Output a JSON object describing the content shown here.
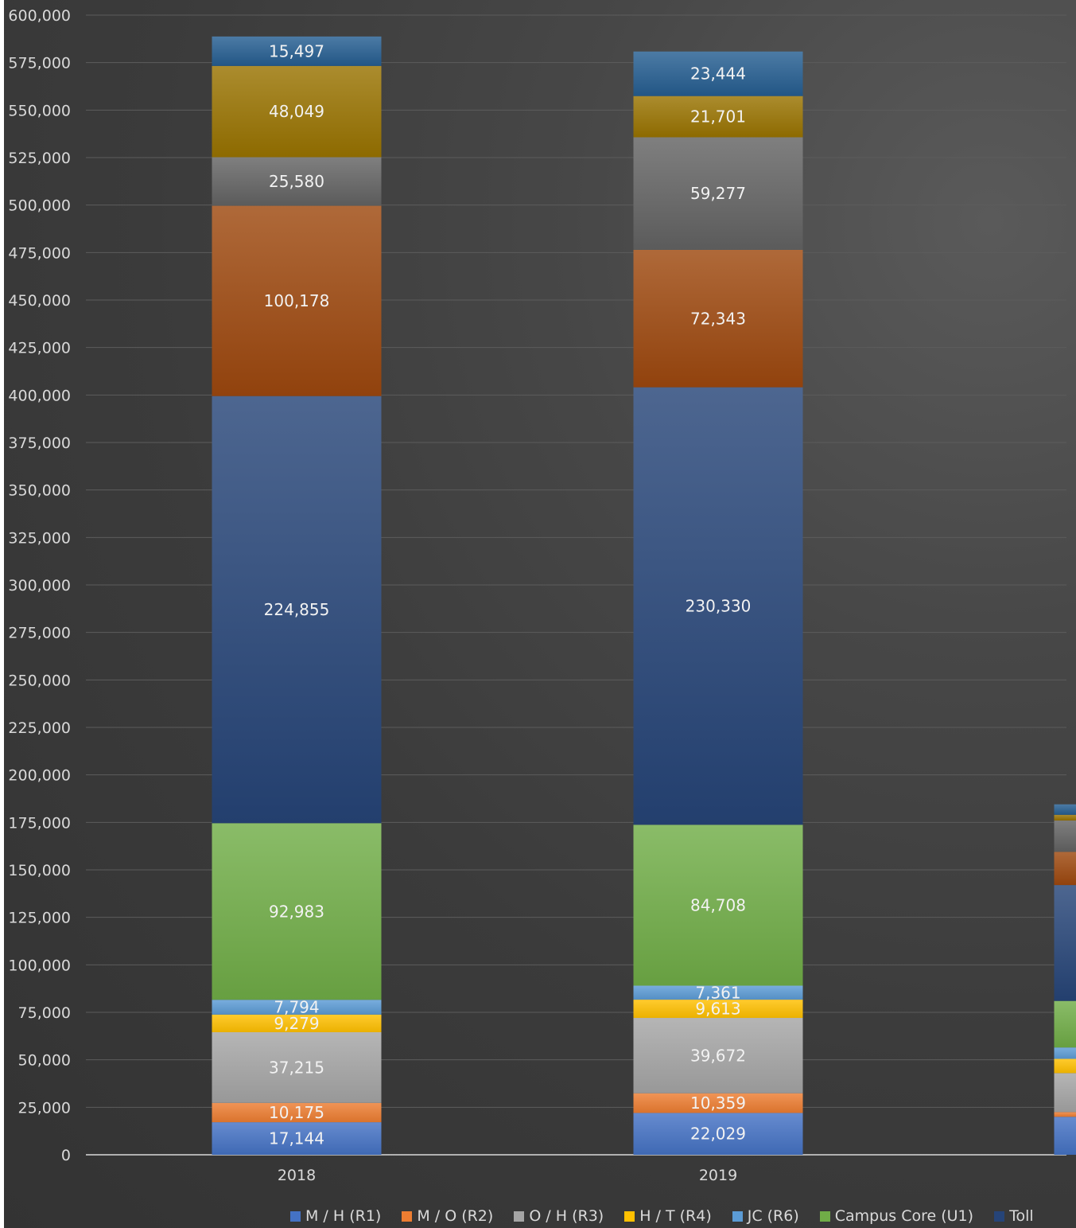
{
  "chart_data": {
    "type": "bar",
    "stacked": true,
    "categories": [
      "2018",
      "2019",
      ""
    ],
    "ylim": [
      0,
      600000
    ],
    "ytick_step": 25000,
    "yticks": [
      "0",
      "25,000",
      "50,000",
      "75,000",
      "100,000",
      "125,000",
      "150,000",
      "175,000",
      "200,000",
      "225,000",
      "250,000",
      "275,000",
      "300,000",
      "325,000",
      "350,000",
      "375,000",
      "400,000",
      "425,000",
      "450,000",
      "475,000",
      "500,000",
      "525,000",
      "550,000",
      "575,000",
      "600,000"
    ],
    "grid": true,
    "legend_position": "bottom",
    "series": [
      {
        "name": "M / H (R1)",
        "color": "#4472c4",
        "values": [
          17144,
          22029,
          20000
        ],
        "labels": [
          "17,144",
          "22,029",
          ""
        ]
      },
      {
        "name": "M / O (R2)",
        "color": "#ed7d31",
        "values": [
          10175,
          10359,
          2500
        ],
        "labels": [
          "10,175",
          "10,359",
          ""
        ]
      },
      {
        "name": "O / H (R3)",
        "color": "#a5a5a5",
        "values": [
          37215,
          39672,
          20500
        ],
        "labels": [
          "37,215",
          "39,672",
          ""
        ]
      },
      {
        "name": "H / T (R4)",
        "color": "#ffc000",
        "values": [
          9279,
          9613,
          7500
        ],
        "labels": [
          "9,279",
          "9,613",
          ""
        ]
      },
      {
        "name": "JC (R6)",
        "color": "#5b9bd5",
        "values": [
          7794,
          7361,
          6000
        ],
        "labels": [
          "7,794",
          "7,361",
          ""
        ]
      },
      {
        "name": "Campus Core (U1)",
        "color": "#70ad47",
        "values": [
          92983,
          84708,
          24500
        ],
        "labels": [
          "92,983",
          "84,708",
          ""
        ]
      },
      {
        "name": "Toll",
        "color": "#264478",
        "values": [
          224855,
          230330,
          61000
        ],
        "labels": [
          "224,855",
          "230,330",
          ""
        ]
      },
      {
        "name": "",
        "color": "#9e480e",
        "values": [
          100178,
          72343,
          17500
        ],
        "labels": [
          "100,178",
          "72,343",
          ""
        ]
      },
      {
        "name": "",
        "color": "#636363",
        "values": [
          25580,
          59277,
          16500
        ],
        "labels": [
          "25,580",
          "59,277",
          ""
        ]
      },
      {
        "name": "",
        "color": "#997300",
        "values": [
          48049,
          21701,
          3000
        ],
        "labels": [
          "48,049",
          "21,701",
          ""
        ]
      },
      {
        "name": "",
        "color": "#255e91",
        "values": [
          15497,
          23444,
          5500
        ],
        "labels": [
          "15,497",
          "23,444",
          ""
        ]
      }
    ]
  },
  "legend": [
    {
      "label": "M / H (R1)",
      "color": "#4472c4"
    },
    {
      "label": "M / O (R2)",
      "color": "#ed7d31"
    },
    {
      "label": "O / H (R3)",
      "color": "#a5a5a5"
    },
    {
      "label": "H / T (R4)",
      "color": "#ffc000"
    },
    {
      "label": "JC (R6)",
      "color": "#5b9bd5"
    },
    {
      "label": "Campus Core (U1)",
      "color": "#70ad47"
    },
    {
      "label": "Toll",
      "color": "#264478"
    }
  ]
}
